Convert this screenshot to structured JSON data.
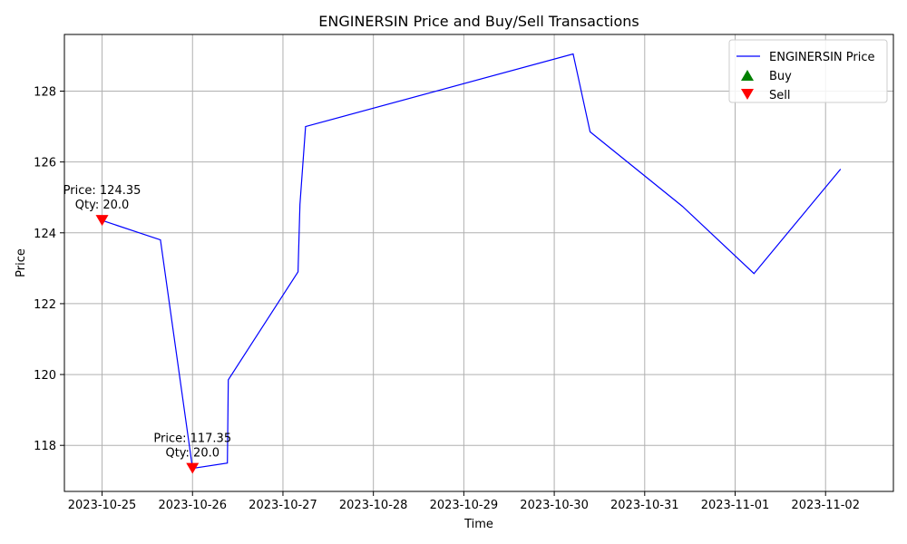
{
  "chart_data": {
    "type": "line",
    "title": "ENGINERSIN Price and Buy/Sell Transactions",
    "xlabel": "Time",
    "ylabel": "Price",
    "x_range": [
      "2023-10-24 14:00",
      "2023-11-02 18:00"
    ],
    "ylim": [
      116.7,
      129.6
    ],
    "grid": true,
    "legend_position": "top-right",
    "x_ticks": [
      "2023-10-25",
      "2023-10-26",
      "2023-10-27",
      "2023-10-28",
      "2023-10-29",
      "2023-10-30",
      "2023-10-31",
      "2023-11-01",
      "2023-11-02"
    ],
    "y_ticks": [
      118,
      120,
      122,
      124,
      126,
      128
    ],
    "series": [
      {
        "name": "ENGINERSIN Price",
        "color": "#0000ff",
        "points": [
          {
            "x": "2023-10-25 00:00",
            "y": 124.35
          },
          {
            "x": "2023-10-25 15:30",
            "y": 123.8
          },
          {
            "x": "2023-10-26 00:00",
            "y": 117.35
          },
          {
            "x": "2023-10-26 09:15",
            "y": 117.5
          },
          {
            "x": "2023-10-26 09:30",
            "y": 119.85
          },
          {
            "x": "2023-10-27 04:00",
            "y": 122.9
          },
          {
            "x": "2023-10-27 04:30",
            "y": 124.8
          },
          {
            "x": "2023-10-27 06:00",
            "y": 127.0
          },
          {
            "x": "2023-10-30 05:00",
            "y": 129.05
          },
          {
            "x": "2023-10-30 09:30",
            "y": 126.85
          },
          {
            "x": "2023-10-31 10:00",
            "y": 124.75
          },
          {
            "x": "2023-11-01 05:00",
            "y": 122.85
          },
          {
            "x": "2023-11-02 04:00",
            "y": 125.8
          }
        ]
      },
      {
        "name": "Buy",
        "color": "#008000",
        "marker": "triangle-up",
        "points": []
      },
      {
        "name": "Sell",
        "color": "#ff0000",
        "marker": "triangle-down",
        "points": [
          {
            "x": "2023-10-25 00:00",
            "y": 124.35,
            "label_price": "Price: 124.35",
            "label_qty": "Qty: 20.0"
          },
          {
            "x": "2023-10-26 00:00",
            "y": 117.35,
            "label_price": "Price: 117.35",
            "label_qty": "Qty: 20.0"
          }
        ]
      }
    ]
  }
}
